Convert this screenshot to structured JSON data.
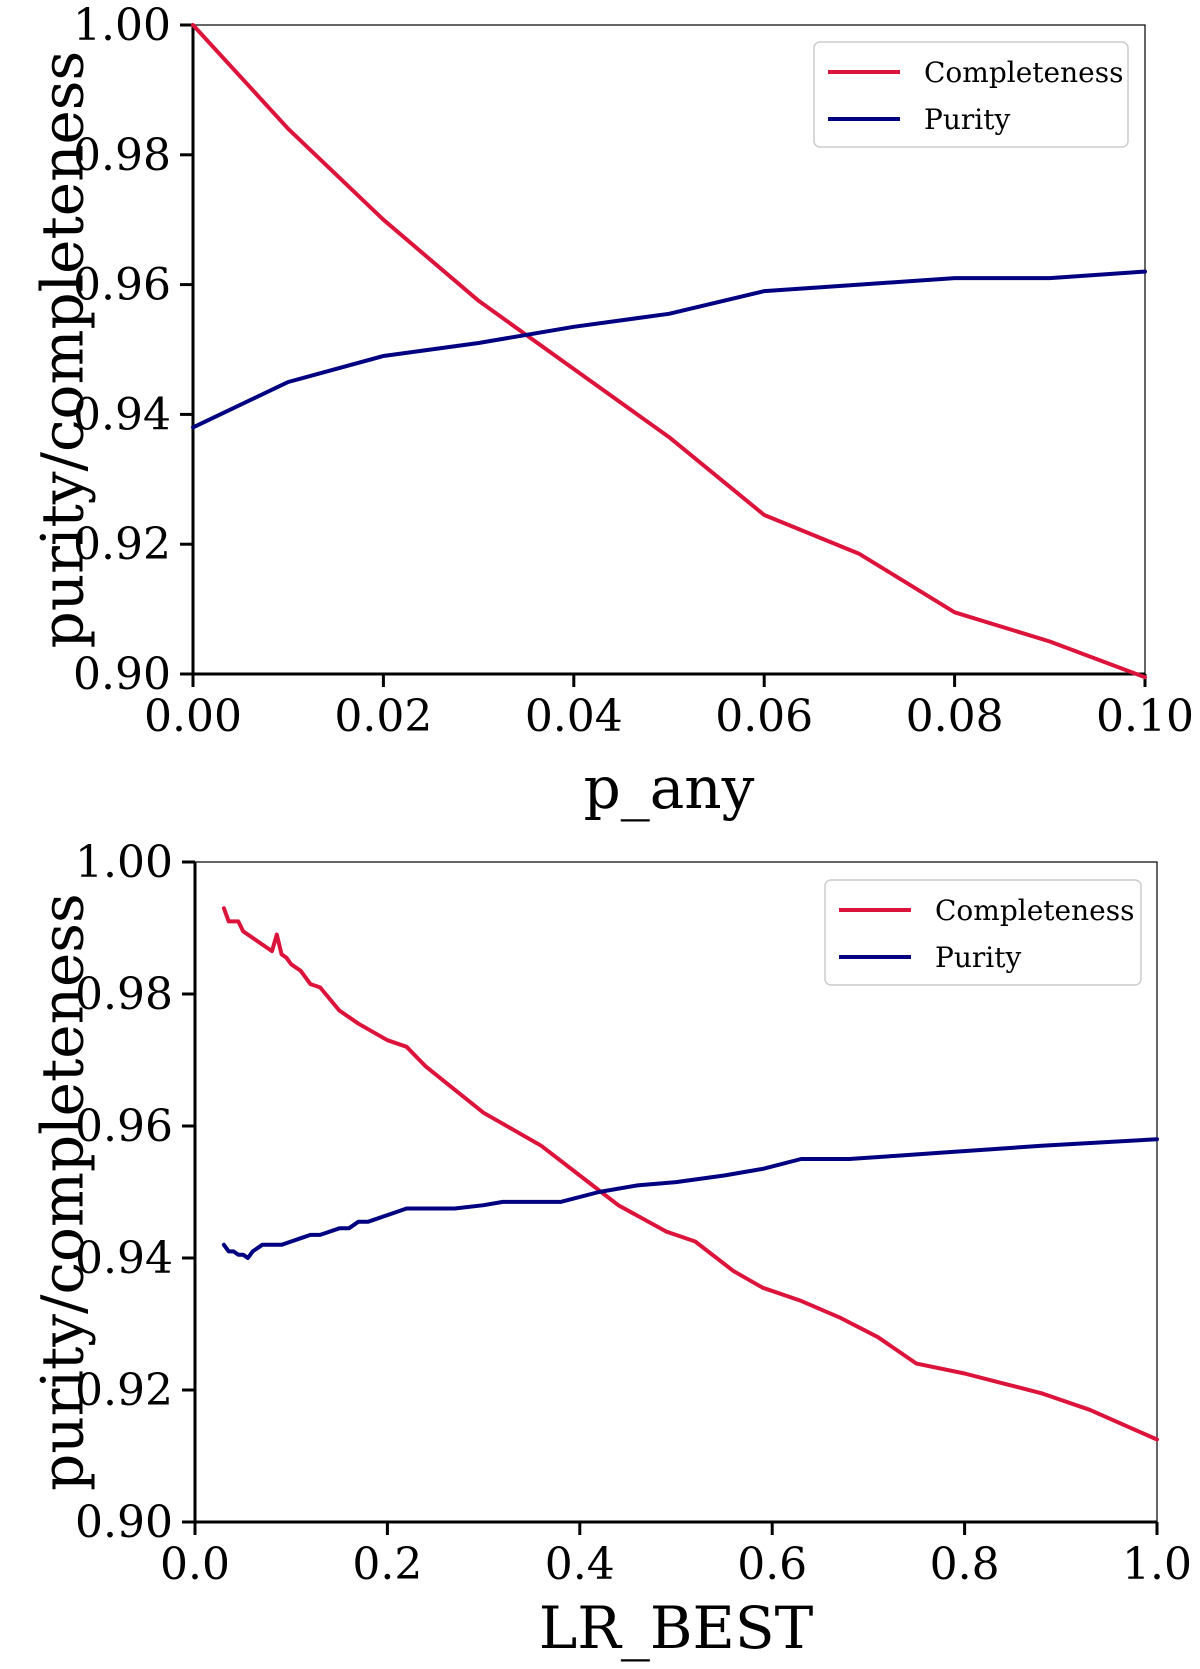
{
  "chart_data": [
    {
      "type": "line",
      "xlabel": "p_any",
      "ylabel": "purity/completeness",
      "xlim": [
        0.0,
        0.1
      ],
      "ylim": [
        0.9,
        1.0
      ],
      "xticks": [
        "0.00",
        "0.02",
        "0.04",
        "0.06",
        "0.08",
        "0.10"
      ],
      "yticks": [
        "0.90",
        "0.92",
        "0.94",
        "0.96",
        "0.98",
        "1.00"
      ],
      "legend_position": "top-right",
      "series": [
        {
          "name": "Completeness",
          "color": "#dc143c",
          "x": [
            0.0,
            0.01,
            0.02,
            0.03,
            0.04,
            0.05,
            0.06,
            0.07,
            0.08,
            0.09,
            0.1
          ],
          "y": [
            1.0,
            0.984,
            0.97,
            0.9575,
            0.947,
            0.9365,
            0.9245,
            0.9185,
            0.9095,
            0.905,
            0.8995
          ]
        },
        {
          "name": "Purity",
          "color": "#000080",
          "x": [
            0.0,
            0.01,
            0.02,
            0.03,
            0.04,
            0.05,
            0.06,
            0.07,
            0.08,
            0.09,
            0.1
          ],
          "y": [
            0.938,
            0.945,
            0.949,
            0.951,
            0.9535,
            0.9555,
            0.959,
            0.96,
            0.961,
            0.961,
            0.962
          ]
        }
      ]
    },
    {
      "type": "line",
      "xlabel": "LR_BEST",
      "ylabel": "purity/completeness",
      "xlim": [
        0.0,
        1.0
      ],
      "ylim": [
        0.9,
        1.0
      ],
      "xticks": [
        "0.0",
        "0.2",
        "0.4",
        "0.6",
        "0.8",
        "1.0"
      ],
      "yticks": [
        "0.90",
        "0.92",
        "0.94",
        "0.96",
        "0.98",
        "1.00"
      ],
      "legend_position": "top-right",
      "series": [
        {
          "name": "Completeness",
          "color": "#dc143c",
          "x": [
            0.03,
            0.035,
            0.04,
            0.045,
            0.05,
            0.06,
            0.07,
            0.08,
            0.085,
            0.09,
            0.095,
            0.1,
            0.11,
            0.12,
            0.13,
            0.15,
            0.17,
            0.2,
            0.22,
            0.24,
            0.27,
            0.3,
            0.33,
            0.36,
            0.4,
            0.44,
            0.49,
            0.52,
            0.56,
            0.59,
            0.63,
            0.67,
            0.71,
            0.75,
            0.8,
            0.84,
            0.88,
            0.93,
            1.0
          ],
          "y": [
            0.993,
            0.991,
            0.991,
            0.991,
            0.9895,
            0.9885,
            0.9875,
            0.9865,
            0.989,
            0.986,
            0.9855,
            0.9845,
            0.9835,
            0.9815,
            0.981,
            0.9775,
            0.9755,
            0.973,
            0.972,
            0.969,
            0.9655,
            0.962,
            0.9595,
            0.957,
            0.9525,
            0.948,
            0.944,
            0.9425,
            0.938,
            0.9355,
            0.9335,
            0.931,
            0.928,
            0.924,
            0.9225,
            0.921,
            0.9195,
            0.917,
            0.9125
          ]
        },
        {
          "name": "Purity",
          "color": "#000080",
          "x": [
            0.03,
            0.035,
            0.04,
            0.045,
            0.05,
            0.055,
            0.06,
            0.07,
            0.08,
            0.09,
            0.1,
            0.11,
            0.12,
            0.13,
            0.14,
            0.15,
            0.16,
            0.17,
            0.18,
            0.2,
            0.22,
            0.25,
            0.27,
            0.3,
            0.32,
            0.35,
            0.38,
            0.42,
            0.46,
            0.5,
            0.55,
            0.59,
            0.63,
            0.68,
            0.73,
            0.78,
            0.83,
            0.88,
            0.94,
            1.0
          ],
          "y": [
            0.942,
            0.941,
            0.941,
            0.9405,
            0.9405,
            0.94,
            0.941,
            0.942,
            0.942,
            0.942,
            0.9425,
            0.943,
            0.9435,
            0.9435,
            0.944,
            0.9445,
            0.9445,
            0.9455,
            0.9455,
            0.9465,
            0.9475,
            0.9475,
            0.9475,
            0.948,
            0.9485,
            0.9485,
            0.9485,
            0.95,
            0.951,
            0.9515,
            0.9525,
            0.9535,
            0.955,
            0.955,
            0.9555,
            0.956,
            0.9565,
            0.957,
            0.9575,
            0.958
          ]
        }
      ]
    }
  ]
}
